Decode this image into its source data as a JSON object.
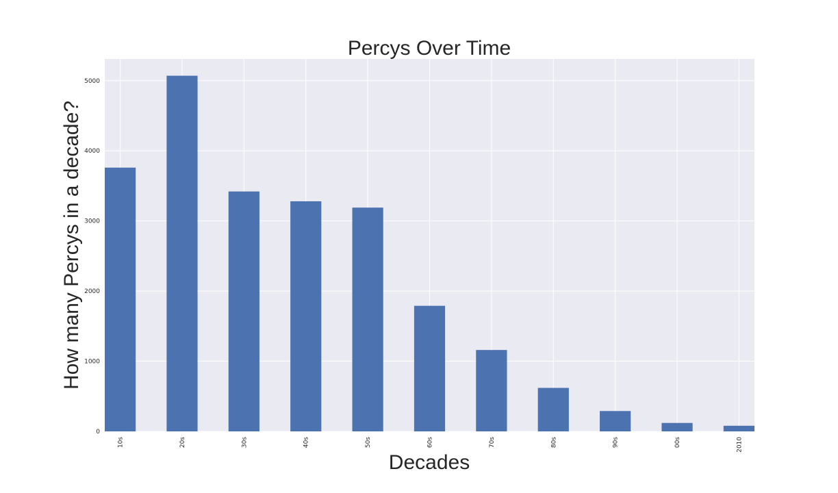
{
  "chart_data": {
    "type": "bar",
    "title": "Percys Over Time",
    "xlabel": "Decades",
    "ylabel": "How many Percys in a decade?",
    "categories": [
      "10s",
      "20s",
      "30s",
      "40s",
      "50s",
      "60s",
      "70s",
      "80s",
      "90s",
      "00s",
      "2010"
    ],
    "values": [
      3760,
      5070,
      3420,
      3280,
      3190,
      1790,
      1160,
      620,
      290,
      120,
      80
    ],
    "yticks": [
      0,
      1000,
      2000,
      3000,
      4000,
      5000
    ],
    "ylim": [
      0,
      5310
    ],
    "grid": true,
    "legend": "none",
    "colors": {
      "bar": "#4c72b0",
      "plot_background": "#eaeaf2",
      "grid": "#ffffff"
    }
  }
}
